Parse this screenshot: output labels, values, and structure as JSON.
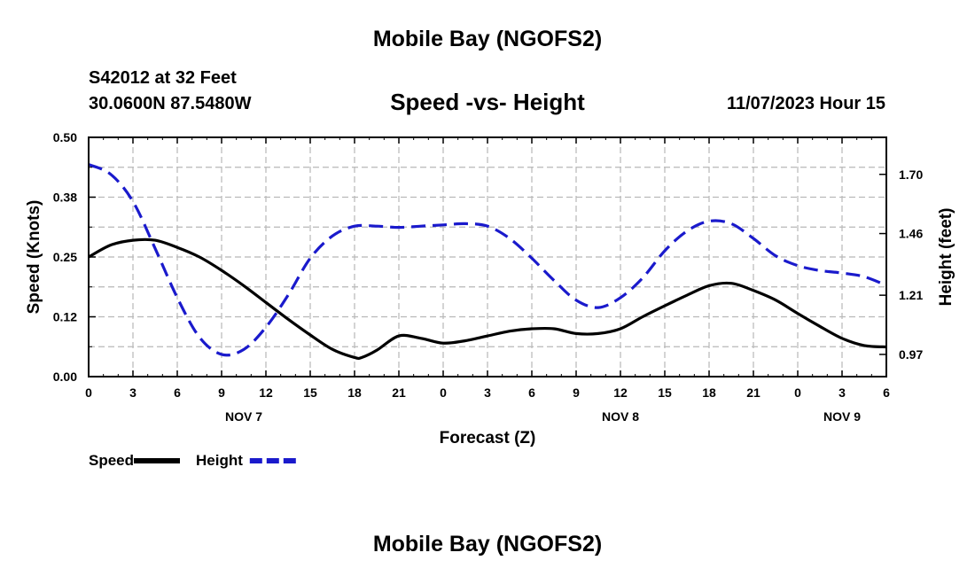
{
  "header": {
    "title": "Mobile Bay (NGOFS2)",
    "station": "S42012 at 32 Feet",
    "coordinates": "30.0600N  87.5480W",
    "subtitle": "Speed -vs- Height",
    "datetime": "11/07/2023 Hour 15"
  },
  "footer": {
    "title": "Mobile Bay (NGOFS2)"
  },
  "chart_data": {
    "type": "line",
    "title": "Speed -vs- Height",
    "xlabel": "Forecast (Z)",
    "ylabel": "Speed (Knots)",
    "y2label": "Height (feet)",
    "xlim": [
      0,
      54
    ],
    "ylim": [
      0,
      0.5
    ],
    "y2lim": [
      0.88,
      1.85
    ],
    "x_ticks": [
      0,
      3,
      6,
      9,
      12,
      15,
      18,
      21,
      24,
      27,
      30,
      33,
      36,
      39,
      42,
      45,
      48,
      51,
      54
    ],
    "x_tick_labels": [
      "0",
      "3",
      "6",
      "9",
      "12",
      "15",
      "18",
      "21",
      "0",
      "3",
      "6",
      "9",
      "12",
      "15",
      "18",
      "21",
      "0",
      "3",
      "6"
    ],
    "date_labels": [
      {
        "x": 10.5,
        "label": "NOV 7"
      },
      {
        "x": 36,
        "label": "NOV 8"
      },
      {
        "x": 51,
        "label": "NOV 9"
      }
    ],
    "y_ticks": [
      0.0,
      0.125,
      0.25,
      0.375,
      0.5
    ],
    "y_tick_labels": [
      "0.00",
      "0.12",
      "0.25",
      "0.38",
      "0.50"
    ],
    "y2_ticks": [
      0.97,
      1.21,
      1.46,
      1.7
    ],
    "y2_tick_labels": [
      "0.97",
      "1.21",
      "1.46",
      "1.70"
    ],
    "grid": true,
    "legend": "bottom-left",
    "series": [
      {
        "name": "Speed",
        "axis": "left",
        "color": "#000000",
        "style": "solid",
        "x": [
          0,
          1.5,
          3,
          4.5,
          6,
          7.5,
          9,
          10.5,
          12,
          13.5,
          15,
          16.5,
          18,
          18.5,
          19.5,
          21,
          22.5,
          24,
          25.5,
          27,
          28.5,
          30,
          31.5,
          33,
          34.5,
          36,
          37.5,
          39,
          40.5,
          42,
          43.5,
          45,
          46.5,
          48,
          49.5,
          51,
          52.5,
          54
        ],
        "values": [
          0.25,
          0.275,
          0.285,
          0.285,
          0.27,
          0.25,
          0.222,
          0.19,
          0.155,
          0.12,
          0.087,
          0.057,
          0.04,
          0.04,
          0.055,
          0.085,
          0.08,
          0.07,
          0.075,
          0.085,
          0.095,
          0.1,
          0.1,
          0.09,
          0.09,
          0.1,
          0.125,
          0.148,
          0.17,
          0.19,
          0.195,
          0.18,
          0.16,
          0.132,
          0.105,
          0.08,
          0.065,
          0.062
        ]
      },
      {
        "name": "Height",
        "axis": "right",
        "color": "#1a1acc",
        "style": "dashed",
        "x": [
          0,
          1.5,
          3,
          4.5,
          6,
          7.5,
          9,
          10.5,
          12,
          13.5,
          15,
          16.5,
          18,
          19.5,
          21,
          22.5,
          24,
          25.5,
          27,
          28.5,
          30,
          31.5,
          33,
          34.5,
          36,
          37.5,
          39,
          40.5,
          42,
          43.5,
          45,
          46.5,
          48,
          49.5,
          51,
          52.5,
          54
        ],
        "values": [
          1.74,
          1.7,
          1.59,
          1.4,
          1.2,
          1.04,
          0.97,
          0.99,
          1.08,
          1.21,
          1.36,
          1.45,
          1.49,
          1.49,
          1.485,
          1.49,
          1.495,
          1.5,
          1.49,
          1.44,
          1.36,
          1.27,
          1.19,
          1.16,
          1.2,
          1.28,
          1.39,
          1.47,
          1.51,
          1.5,
          1.44,
          1.37,
          1.33,
          1.31,
          1.3,
          1.285,
          1.25
        ]
      }
    ]
  }
}
